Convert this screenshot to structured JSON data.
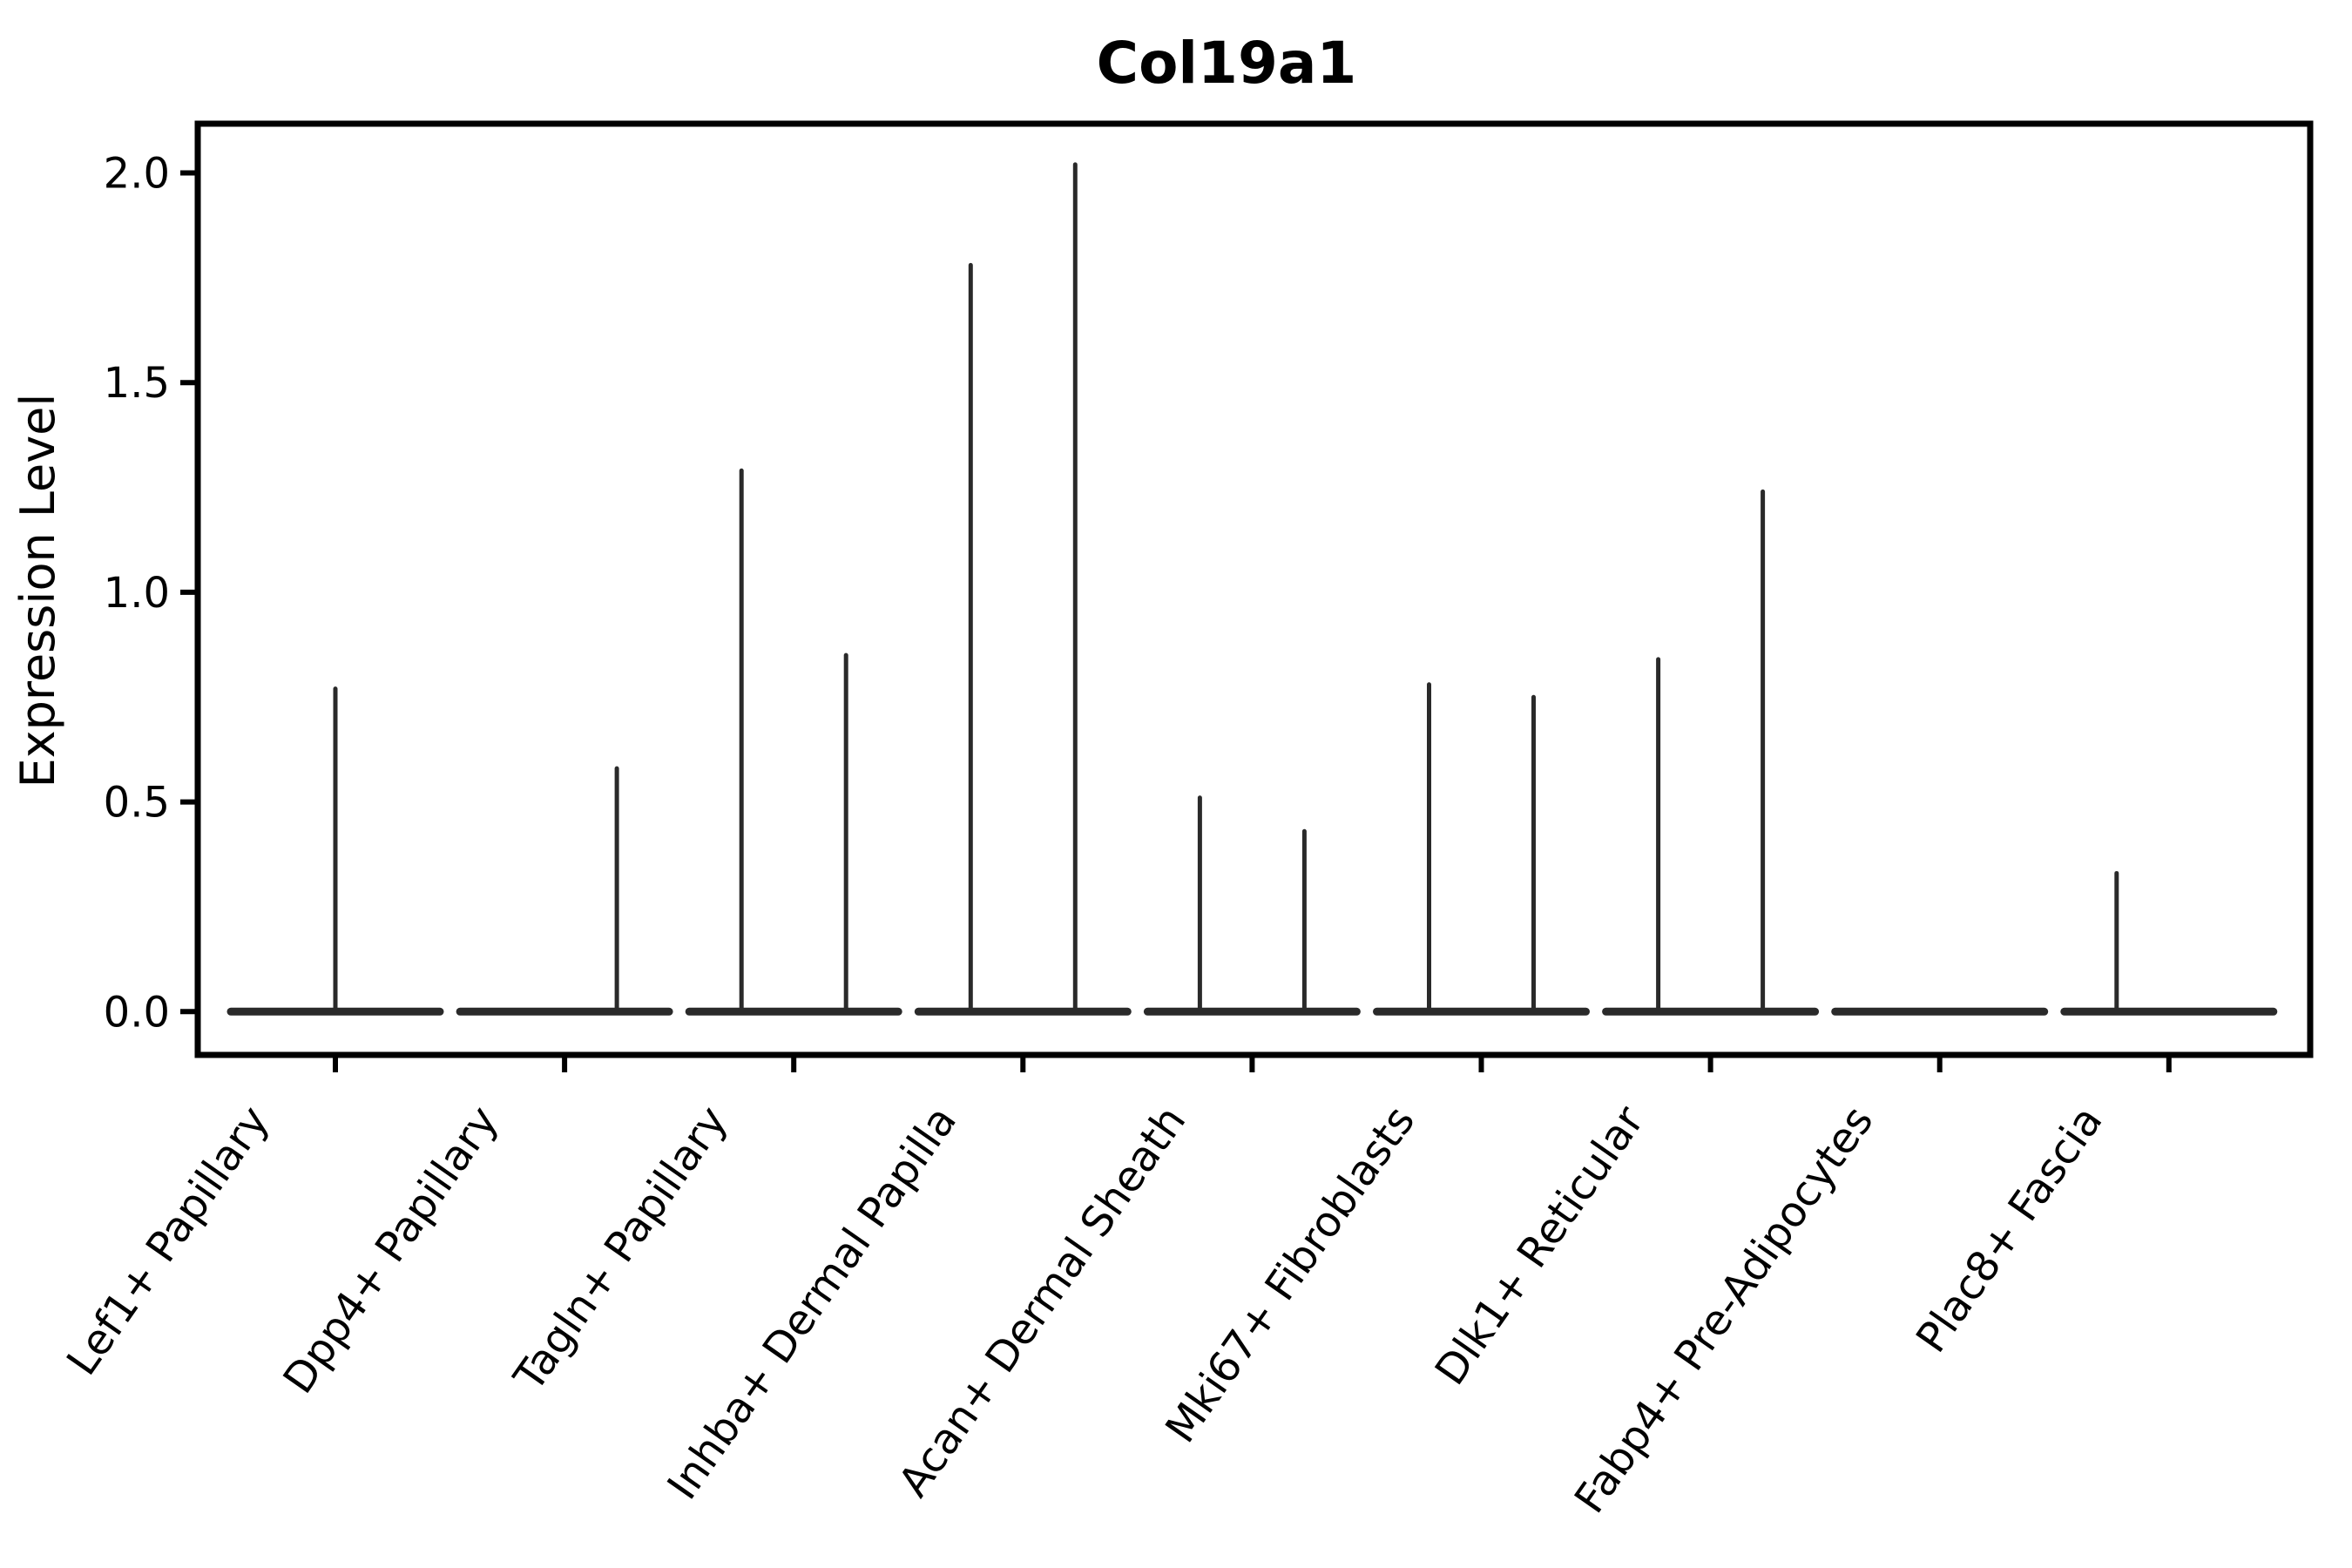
{
  "title": "Col19a1",
  "ylabel": "Expression Level",
  "colors": {
    "background": "#ffffff",
    "axis": "#000000",
    "violin_line": "#2a2a2a",
    "text": "#000000"
  },
  "chart_data": {
    "type": "violin",
    "title": "Col19a1",
    "xlabel": "",
    "ylabel": "Expression Level",
    "ylim": [
      0,
      2.1
    ],
    "yticks": [
      0.0,
      0.5,
      1.0,
      1.5,
      2.0
    ],
    "ytick_labels": [
      "0.0",
      "0.5",
      "1.0",
      "1.5",
      "2.0"
    ],
    "grid": false,
    "legend": "none",
    "baseline_value": 0.0,
    "note": "Expression mostly zero per cluster: each violin is a flat body at 0 with a thin spike to its maximum; several clusters contain two side-by-side sub-violins",
    "violins": [
      {
        "category": "Lef1+ Papillary",
        "sub_violins": [
          {
            "pos": "center",
            "max": 0.77
          }
        ]
      },
      {
        "category": "Dpp4+ Papillary",
        "sub_violins": [
          {
            "pos": "left",
            "max": 0.0
          },
          {
            "pos": "right",
            "max": 0.58
          }
        ]
      },
      {
        "category": "Tagln+ Papillary",
        "sub_violins": [
          {
            "pos": "left",
            "max": 1.29
          },
          {
            "pos": "right",
            "max": 0.85
          }
        ]
      },
      {
        "category": "Inhba+ Dermal Papilla",
        "sub_violins": [
          {
            "pos": "left",
            "max": 1.78
          },
          {
            "pos": "right",
            "max": 2.02
          }
        ]
      },
      {
        "category": "Acan+ Dermal Sheath",
        "sub_violins": [
          {
            "pos": "left",
            "max": 0.51
          },
          {
            "pos": "right",
            "max": 0.43
          }
        ]
      },
      {
        "category": "Mki67+ Fibroblasts",
        "sub_violins": [
          {
            "pos": "left",
            "max": 0.78
          },
          {
            "pos": "right",
            "max": 0.75
          }
        ]
      },
      {
        "category": "Dlk1+ Reticular",
        "sub_violins": [
          {
            "pos": "left",
            "max": 0.84
          },
          {
            "pos": "right",
            "max": 1.24
          }
        ]
      },
      {
        "category": "Fabp4+ Pre-Adipocytes",
        "sub_violins": [
          {
            "pos": "left",
            "max": 0.0
          },
          {
            "pos": "right",
            "max": 0.0
          }
        ]
      },
      {
        "category": "Plac8+ Fascia",
        "sub_violins": [
          {
            "pos": "left",
            "max": 0.33
          },
          {
            "pos": "right",
            "max": 0.0
          }
        ]
      }
    ]
  }
}
